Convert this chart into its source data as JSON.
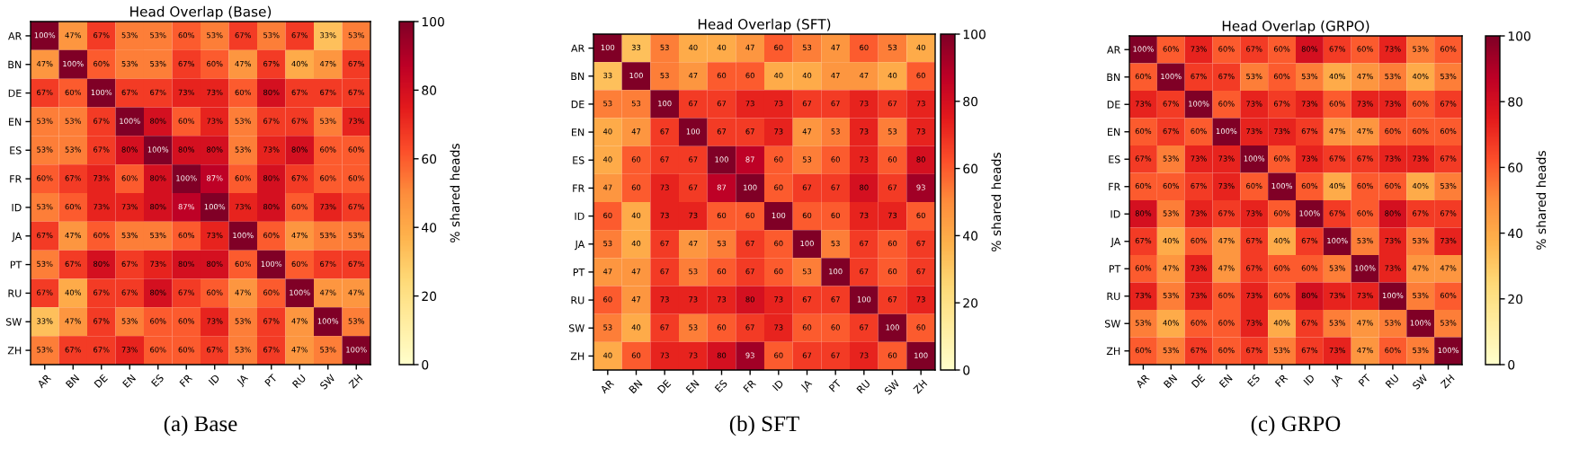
{
  "chart_data": [
    {
      "type": "heatmap",
      "title": "Head Overlap (Base)",
      "clabel": "% shared heads",
      "clim": [
        0,
        100
      ],
      "cticks": [
        0,
        20,
        40,
        60,
        80,
        100
      ],
      "annotations": [
        "(a) Base"
      ],
      "categories": [
        "AR",
        "BN",
        "DE",
        "EN",
        "ES",
        "FR",
        "ID",
        "JA",
        "PT",
        "RU",
        "SW",
        "ZH"
      ],
      "y_categories": [
        "AR",
        "BN",
        "DE",
        "EN",
        "ES",
        "FR",
        "ID",
        "JA",
        "PT",
        "RU",
        "SW",
        "ZH"
      ],
      "cells": [
        [
          100,
          47,
          67,
          53,
          53,
          60,
          53,
          67,
          53,
          67,
          33,
          53
        ],
        [
          47,
          100,
          60,
          53,
          53,
          67,
          60,
          47,
          67,
          40,
          47,
          67
        ],
        [
          67,
          60,
          100,
          67,
          67,
          73,
          73,
          60,
          80,
          67,
          67,
          67
        ],
        [
          53,
          53,
          67,
          100,
          80,
          60,
          73,
          53,
          67,
          67,
          53,
          73
        ],
        [
          53,
          53,
          67,
          80,
          100,
          80,
          80,
          53,
          73,
          80,
          60,
          60
        ],
        [
          60,
          67,
          73,
          60,
          80,
          100,
          87,
          60,
          80,
          67,
          60,
          60
        ],
        [
          53,
          60,
          73,
          73,
          80,
          87,
          100,
          73,
          80,
          60,
          73,
          67
        ],
        [
          67,
          47,
          60,
          53,
          53,
          60,
          73,
          100,
          60,
          47,
          53,
          53
        ],
        [
          53,
          67,
          80,
          67,
          73,
          80,
          80,
          60,
          100,
          60,
          67,
          67
        ],
        [
          67,
          40,
          67,
          67,
          80,
          67,
          60,
          47,
          60,
          100,
          47,
          47
        ],
        [
          33,
          47,
          67,
          53,
          60,
          60,
          73,
          53,
          67,
          47,
          100,
          53
        ],
        [
          53,
          67,
          67,
          73,
          60,
          60,
          67,
          53,
          67,
          47,
          53,
          100
        ]
      ],
      "cell_labels": [
        [
          "100%",
          "47%",
          "67%",
          "53%",
          "53%",
          "60%",
          "53%",
          "67%",
          "53%",
          "67%",
          "33%",
          "53%"
        ],
        [
          "47%",
          "100%",
          "60%",
          "53%",
          "53%",
          "67%",
          "60%",
          "47%",
          "67%",
          "40%",
          "47%",
          "67%"
        ],
        [
          "67%",
          "60%",
          "100%",
          "67%",
          "67%",
          "73%",
          "73%",
          "60%",
          "80%",
          "67%",
          "67%",
          "67%"
        ],
        [
          "53%",
          "53%",
          "67%",
          "100%",
          "80%",
          "60%",
          "73%",
          "53%",
          "67%",
          "67%",
          "53%",
          "73%"
        ],
        [
          "53%",
          "53%",
          "67%",
          "80%",
          "100%",
          "80%",
          "80%",
          "53%",
          "73%",
          "80%",
          "60%",
          "60%"
        ],
        [
          "60%",
          "67%",
          "73%",
          "60%",
          "80%",
          "100%",
          "87%",
          "60%",
          "80%",
          "67%",
          "60%",
          "60%"
        ],
        [
          "53%",
          "60%",
          "73%",
          "73%",
          "80%",
          "87%",
          "100%",
          "73%",
          "80%",
          "60%",
          "73%",
          "67%"
        ],
        [
          "67%",
          "47%",
          "60%",
          "53%",
          "53%",
          "60%",
          "73%",
          "100%",
          "60%",
          "47%",
          "53%",
          "53%"
        ],
        [
          "53%",
          "67%",
          "80%",
          "67%",
          "73%",
          "80%",
          "80%",
          "60%",
          "100%",
          "60%",
          "67%",
          "67%"
        ],
        [
          "67%",
          "40%",
          "67%",
          "67%",
          "80%",
          "67%",
          "60%",
          "47%",
          "60%",
          "100%",
          "47%",
          "47%"
        ],
        [
          "33%",
          "47%",
          "67%",
          "53%",
          "60%",
          "60%",
          "73%",
          "53%",
          "67%",
          "47%",
          "100%",
          "53%"
        ],
        [
          "53%",
          "67%",
          "67%",
          "73%",
          "60%",
          "60%",
          "67%",
          "53%",
          "67%",
          "47%",
          "53%",
          "100%"
        ]
      ]
    },
    {
      "type": "heatmap",
      "title": "Head Overlap (SFT)",
      "clabel": "% shared heads",
      "clim": [
        0,
        100
      ],
      "cticks": [
        0,
        20,
        40,
        60,
        80,
        100
      ],
      "annotations": [
        "(b) SFT"
      ],
      "data_labels": true,
      "categories": [
        "AR",
        "BN",
        "DE",
        "EN",
        "ES",
        "FR",
        "ID",
        "JA",
        "PT",
        "RU",
        "SW",
        "ZH"
      ],
      "y_categories": [
        "AR",
        "BN",
        "DE",
        "EN",
        "ES",
        "FR",
        "ID",
        "JA",
        "PT",
        "RU",
        "SW",
        "ZH"
      ],
      "cells": [
        [
          100,
          33,
          53,
          40,
          40,
          47,
          60,
          53,
          47,
          60,
          53,
          40
        ],
        [
          33,
          100,
          53,
          47,
          60,
          60,
          40,
          40,
          47,
          47,
          40,
          60
        ],
        [
          53,
          53,
          100,
          67,
          67,
          73,
          73,
          67,
          67,
          73,
          67,
          73
        ],
        [
          40,
          47,
          67,
          100,
          67,
          67,
          73,
          47,
          53,
          73,
          53,
          73
        ],
        [
          40,
          60,
          67,
          67,
          100,
          87,
          60,
          53,
          60,
          73,
          60,
          80
        ],
        [
          47,
          60,
          73,
          67,
          87,
          100,
          60,
          67,
          67,
          80,
          67,
          93
        ],
        [
          60,
          40,
          73,
          73,
          60,
          60,
          100,
          60,
          60,
          73,
          73,
          60
        ],
        [
          53,
          40,
          67,
          47,
          53,
          67,
          60,
          100,
          53,
          67,
          60,
          67
        ],
        [
          47,
          47,
          67,
          53,
          60,
          67,
          60,
          53,
          100,
          67,
          60,
          67
        ],
        [
          60,
          47,
          73,
          73,
          73,
          80,
          73,
          67,
          67,
          100,
          67,
          73
        ],
        [
          53,
          40,
          67,
          53,
          60,
          67,
          73,
          60,
          60,
          67,
          100,
          60
        ],
        [
          40,
          60,
          73,
          73,
          80,
          93,
          60,
          67,
          67,
          73,
          60,
          100
        ]
      ]
    },
    {
      "type": "heatmap",
      "title": "Head Overlap (GRPO)",
      "clabel": "% shared heads",
      "clim": [
        0,
        100
      ],
      "cticks": [
        0,
        20,
        40,
        60,
        80,
        100
      ],
      "annotations": [
        "(c) GRPO"
      ],
      "categories": [
        "AR",
        "BN",
        "DE",
        "EN",
        "ES",
        "FR",
        "ID",
        "JA",
        "PT",
        "RU",
        "SW",
        "ZH"
      ],
      "y_categories": [
        "AR",
        "BN",
        "DE",
        "EN",
        "ES",
        "FR",
        "ID",
        "JA",
        "PT",
        "RU",
        "SW",
        "ZH"
      ],
      "cells": [
        [
          100,
          60,
          73,
          60,
          67,
          60,
          80,
          67,
          60,
          73,
          53,
          60
        ],
        [
          60,
          100,
          67,
          67,
          53,
          60,
          53,
          40,
          47,
          53,
          40,
          53
        ],
        [
          73,
          67,
          100,
          60,
          73,
          67,
          73,
          60,
          73,
          73,
          60,
          67
        ],
        [
          60,
          67,
          60,
          100,
          73,
          73,
          67,
          47,
          47,
          60,
          60,
          60
        ],
        [
          67,
          53,
          73,
          73,
          100,
          60,
          73,
          67,
          67,
          73,
          73,
          67
        ],
        [
          60,
          60,
          67,
          73,
          60,
          100,
          60,
          40,
          60,
          60,
          40,
          53
        ],
        [
          80,
          53,
          73,
          67,
          73,
          60,
          100,
          67,
          60,
          80,
          67,
          67
        ],
        [
          67,
          40,
          60,
          47,
          67,
          40,
          67,
          100,
          53,
          73,
          53,
          73
        ],
        [
          60,
          47,
          73,
          47,
          67,
          60,
          60,
          53,
          100,
          73,
          47,
          47
        ],
        [
          73,
          53,
          73,
          60,
          73,
          60,
          80,
          73,
          73,
          100,
          53,
          60
        ],
        [
          53,
          40,
          60,
          60,
          73,
          40,
          67,
          53,
          47,
          53,
          100,
          53
        ],
        [
          60,
          53,
          67,
          60,
          67,
          53,
          67,
          73,
          47,
          60,
          53,
          100
        ]
      ],
      "cell_labels": [
        [
          "100%",
          "60%",
          "73%",
          "60%",
          "67%",
          "60%",
          "80%",
          "67%",
          "60%",
          "73%",
          "53%",
          "60%"
        ],
        [
          "60%",
          "100%",
          "67%",
          "67%",
          "53%",
          "60%",
          "53%",
          "40%",
          "47%",
          "53%",
          "40%",
          "53%"
        ],
        [
          "73%",
          "67%",
          "100%",
          "60%",
          "73%",
          "67%",
          "73%",
          "60%",
          "73%",
          "73%",
          "60%",
          "67%"
        ],
        [
          "60%",
          "67%",
          "60%",
          "100%",
          "73%",
          "73%",
          "67%",
          "47%",
          "47%",
          "60%",
          "60%",
          "60%"
        ],
        [
          "67%",
          "53%",
          "73%",
          "73%",
          "100%",
          "60%",
          "73%",
          "67%",
          "67%",
          "73%",
          "73%",
          "67%"
        ],
        [
          "60%",
          "60%",
          "67%",
          "73%",
          "60%",
          "100%",
          "60%",
          "40%",
          "60%",
          "60%",
          "40%",
          "53%"
        ],
        [
          "80%",
          "53%",
          "73%",
          "67%",
          "73%",
          "60%",
          "100%",
          "67%",
          "60%",
          "80%",
          "67%",
          "67%"
        ],
        [
          "67%",
          "40%",
          "60%",
          "47%",
          "67%",
          "40%",
          "67%",
          "100%",
          "53%",
          "73%",
          "53%",
          "73%"
        ],
        [
          "60%",
          "47%",
          "73%",
          "47%",
          "67%",
          "60%",
          "60%",
          "53%",
          "100%",
          "73%",
          "47%",
          "47%"
        ],
        [
          "73%",
          "53%",
          "73%",
          "60%",
          "73%",
          "60%",
          "80%",
          "73%",
          "73%",
          "100%",
          "53%",
          "60%"
        ],
        [
          "53%",
          "40%",
          "60%",
          "60%",
          "73%",
          "40%",
          "67%",
          "53%",
          "47%",
          "53%",
          "100%",
          "53%"
        ],
        [
          "60%",
          "53%",
          "67%",
          "60%",
          "67%",
          "53%",
          "67%",
          "73%",
          "47%",
          "60%",
          "53%",
          "100%"
        ]
      ]
    }
  ]
}
